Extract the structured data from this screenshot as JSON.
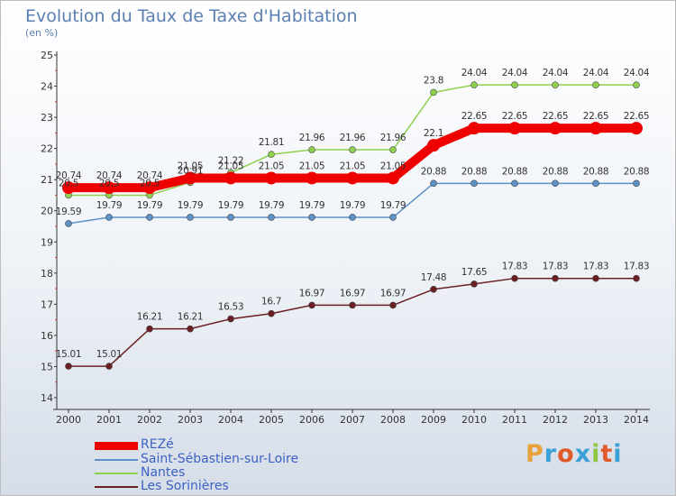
{
  "header": {
    "title": "Evolution du Taux de Taxe d'Habitation",
    "subtitle": "(en %)"
  },
  "brand": {
    "text": "Proxiti",
    "colors": [
      "#e8a23c",
      "#3aa0d8",
      "#e05a2b",
      "#3aa0d8",
      "#8dc63f",
      "#e05a2b",
      "#3aa0d8"
    ]
  },
  "chart_data": {
    "type": "line",
    "title": "Evolution du Taux de Taxe d'Habitation",
    "subtitle": "(en %)",
    "x": [
      "2000",
      "2001",
      "2002",
      "2003",
      "2004",
      "2005",
      "2006",
      "2007",
      "2008",
      "2009",
      "2010",
      "2011",
      "2012",
      "2013",
      "2014"
    ],
    "ylim": [
      14,
      25
    ],
    "yticks": [
      "14",
      "15",
      "16",
      "17",
      "18",
      "19",
      "20",
      "21",
      "22",
      "23",
      "24",
      "25"
    ],
    "grid": false,
    "legend_position": "bottom-left",
    "series": [
      {
        "name": "REZé",
        "color": "#ee0000",
        "values": [
          20.74,
          20.74,
          20.74,
          21.05,
          21.05,
          21.05,
          21.05,
          21.05,
          21.05,
          22.1,
          22.65,
          22.65,
          22.65,
          22.65,
          22.65
        ],
        "labels": [
          "20.74",
          "20.74",
          "20.74",
          "21.05",
          "21.05",
          "21.05",
          "21.05",
          "21.05",
          "21.05",
          "22.1",
          "22.65",
          "22.65",
          "22.65",
          "22.65",
          "22.65"
        ]
      },
      {
        "name": "Saint-Sébastien-sur-Loire",
        "color": "#5d92c8",
        "values": [
          19.59,
          19.79,
          19.79,
          19.79,
          19.79,
          19.79,
          19.79,
          19.79,
          19.79,
          20.88,
          20.88,
          20.88,
          20.88,
          20.88,
          20.88
        ],
        "labels": [
          "19.59",
          "19.79",
          "19.79",
          "19.79",
          "19.79",
          "19.79",
          "19.79",
          "19.79",
          "19.79",
          "20.88",
          "20.88",
          "20.88",
          "20.88",
          "20.88",
          "20.88"
        ]
      },
      {
        "name": "Nantes",
        "color": "#8fd14f",
        "values": [
          20.5,
          20.5,
          20.5,
          20.91,
          21.22,
          21.81,
          21.96,
          21.96,
          21.96,
          23.8,
          24.04,
          24.04,
          24.04,
          24.04,
          24.04
        ],
        "labels": [
          "20.5",
          "20.5",
          "20.5",
          "20.91",
          "21.22",
          "21.81",
          "21.96",
          "21.96",
          "21.96",
          "23.8",
          "24.04",
          "24.04",
          "24.04",
          "24.04",
          "24.04"
        ]
      },
      {
        "name": "Les Sorinières",
        "color": "#6b1f22",
        "values": [
          15.01,
          15.01,
          16.21,
          16.21,
          16.53,
          16.7,
          16.97,
          16.97,
          16.97,
          17.48,
          17.65,
          17.83,
          17.83,
          17.83,
          17.83
        ],
        "labels": [
          "15.01",
          "15.01",
          "16.21",
          "16.21",
          "16.53",
          "16.7",
          "16.97",
          "16.97",
          "16.97",
          "17.48",
          "17.65",
          "17.83",
          "17.83",
          "17.83",
          "17.83"
        ]
      }
    ]
  }
}
